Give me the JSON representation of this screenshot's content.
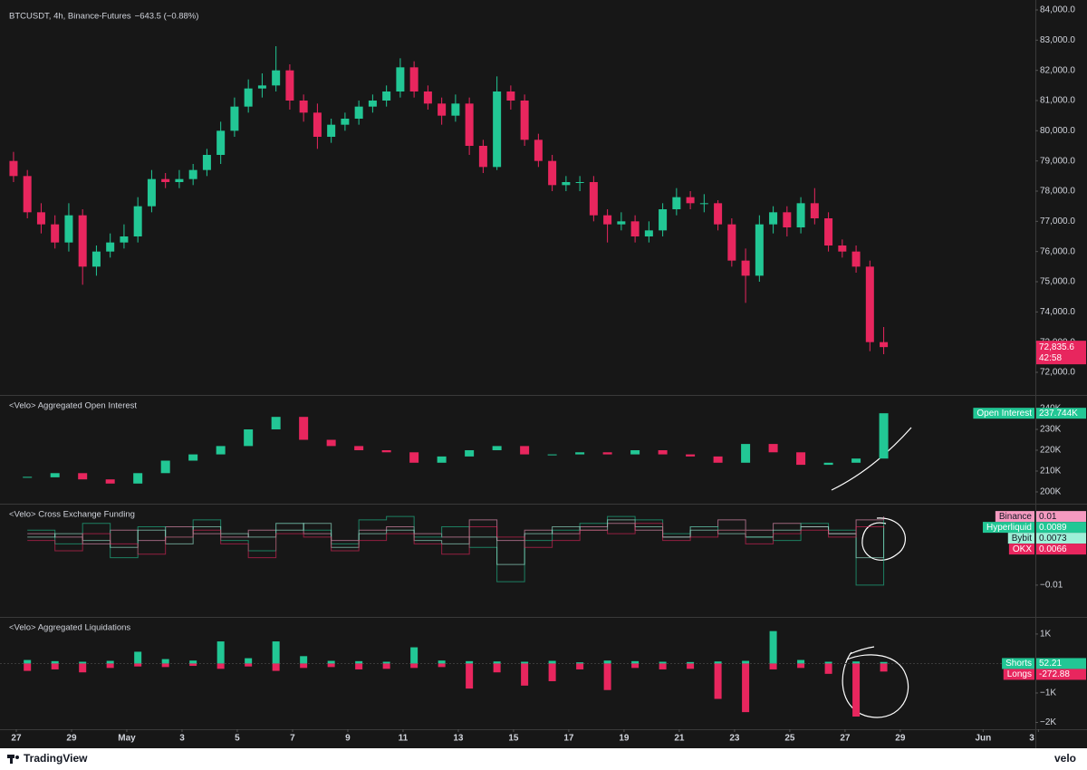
{
  "footer": {
    "brand": "TradingView",
    "partner": "velo"
  },
  "chart_data": [
    {
      "type": "candlestick",
      "title": "BTCUSDT, 4h, Binance-Futures",
      "change": "−643.5 (−0.88%)",
      "up_color": "#22c795",
      "down_color": "#e8265e",
      "xlim": [
        -0.59,
        36.89
      ],
      "ylim": [
        71280,
        84090
      ],
      "yticks": [
        {
          "value": 72000,
          "label": "72,000.0"
        },
        {
          "value": 73000,
          "label": "73,000.0"
        },
        {
          "value": 74000,
          "label": "74,000.0"
        },
        {
          "value": 75000,
          "label": "75,000.0"
        },
        {
          "value": 76000,
          "label": "76,000.0"
        },
        {
          "value": 77000,
          "label": "77,000.0"
        },
        {
          "value": 78000,
          "label": "78,000.0"
        },
        {
          "value": 79000,
          "label": "79,000.0"
        },
        {
          "value": 80000,
          "label": "80,000.0"
        },
        {
          "value": 81000,
          "label": "81,000.0"
        },
        {
          "value": 82000,
          "label": "82,000.0"
        },
        {
          "value": 83000,
          "label": "83,000.0"
        },
        {
          "value": 84000,
          "label": "84,000.0"
        }
      ],
      "x": [
        -0.1,
        0.4,
        0.9,
        1.4,
        1.9,
        2.4,
        2.9,
        3.4,
        3.9,
        4.4,
        4.9,
        5.4,
        5.9,
        6.4,
        6.9,
        7.4,
        7.9,
        8.4,
        8.9,
        9.4,
        9.9,
        10.4,
        10.9,
        11.4,
        11.9,
        12.4,
        12.9,
        13.4,
        13.9,
        14.4,
        14.9,
        15.4,
        15.9,
        16.4,
        16.9,
        17.4,
        17.9,
        18.4,
        18.9,
        19.4,
        19.9,
        20.4,
        20.9,
        21.4,
        21.9,
        22.4,
        22.9,
        23.4,
        23.9,
        24.4,
        24.9,
        25.4,
        25.9,
        26.4,
        26.9,
        27.4,
        27.9,
        28.4,
        28.9,
        29.4,
        29.9,
        30.4,
        30.9,
        31.4
      ],
      "ohlc": [
        [
          79000,
          79300,
          78300,
          78500
        ],
        [
          78500,
          78700,
          77100,
          77300
        ],
        [
          77300,
          77600,
          76600,
          76900
        ],
        [
          76900,
          77200,
          76100,
          76300
        ],
        [
          76300,
          77600,
          76000,
          77200
        ],
        [
          77200,
          77400,
          74900,
          75500
        ],
        [
          75500,
          76200,
          75200,
          76000
        ],
        [
          76000,
          76600,
          75800,
          76300
        ],
        [
          76300,
          76900,
          76100,
          76500
        ],
        [
          76500,
          77800,
          76300,
          77500
        ],
        [
          77500,
          78700,
          77300,
          78400
        ],
        [
          78400,
          78600,
          78100,
          78300
        ],
        [
          78300,
          78700,
          78100,
          78400
        ],
        [
          78400,
          78900,
          78200,
          78700
        ],
        [
          78700,
          79400,
          78500,
          79200
        ],
        [
          79200,
          80300,
          78900,
          80000
        ],
        [
          80000,
          81100,
          79800,
          80800
        ],
        [
          80800,
          81700,
          80600,
          81400
        ],
        [
          81400,
          81900,
          81100,
          81500
        ],
        [
          81500,
          82800,
          81300,
          82000
        ],
        [
          82000,
          82200,
          80700,
          81000
        ],
        [
          81000,
          81200,
          80300,
          80600
        ],
        [
          80600,
          80900,
          79400,
          79800
        ],
        [
          79800,
          80400,
          79600,
          80200
        ],
        [
          80200,
          80600,
          80000,
          80400
        ],
        [
          80400,
          81000,
          80200,
          80800
        ],
        [
          80800,
          81200,
          80600,
          81000
        ],
        [
          81000,
          81500,
          80800,
          81300
        ],
        [
          81300,
          82400,
          81100,
          82100
        ],
        [
          82100,
          82300,
          81100,
          81300
        ],
        [
          81300,
          81500,
          80700,
          80900
        ],
        [
          80900,
          81100,
          80200,
          80500
        ],
        [
          80500,
          81200,
          80300,
          80900
        ],
        [
          80900,
          81100,
          79200,
          79500
        ],
        [
          79500,
          79700,
          78600,
          78800
        ],
        [
          78800,
          81800,
          78700,
          81300
        ],
        [
          81300,
          81500,
          80700,
          81000
        ],
        [
          81000,
          81200,
          79500,
          79700
        ],
        [
          79700,
          79900,
          78800,
          79000
        ],
        [
          79000,
          79200,
          78000,
          78200
        ],
        [
          78200,
          78500,
          78000,
          78300
        ],
        [
          78300,
          78500,
          78000,
          78300
        ],
        [
          78300,
          78500,
          77000,
          77200
        ],
        [
          77200,
          77400,
          76300,
          76900
        ],
        [
          76900,
          77300,
          76700,
          77000
        ],
        [
          77000,
          77200,
          76300,
          76500
        ],
        [
          76500,
          77000,
          76300,
          76700
        ],
        [
          76700,
          77600,
          76500,
          77400
        ],
        [
          77400,
          78100,
          77200,
          77800
        ],
        [
          77800,
          78000,
          77400,
          77600
        ],
        [
          77600,
          77900,
          77300,
          77600
        ],
        [
          77600,
          77700,
          76700,
          76900
        ],
        [
          76900,
          77100,
          75500,
          75700
        ],
        [
          75700,
          76100,
          74300,
          75200
        ],
        [
          75200,
          77200,
          75000,
          76900
        ],
        [
          76900,
          77500,
          76600,
          77300
        ],
        [
          77300,
          77500,
          76500,
          76800
        ],
        [
          76800,
          77800,
          76600,
          77600
        ],
        [
          77600,
          78100,
          76900,
          77100
        ],
        [
          77100,
          77300,
          76000,
          76200
        ],
        [
          76200,
          76400,
          75800,
          76000
        ],
        [
          76000,
          76200,
          75300,
          75500
        ],
        [
          75500,
          75700,
          72700,
          73000
        ],
        [
          73000,
          73500,
          72600,
          72835.6
        ]
      ],
      "last_price": {
        "value": 72835.6,
        "label": "72,835.6"
      },
      "countdown": "42:58"
    },
    {
      "type": "candlestick",
      "title": "<Velo> Aggregated Open Interest",
      "up_color": "#22c795",
      "down_color": "#e8265e",
      "xlim": [
        -0.59,
        36.89
      ],
      "ylim": [
        194780,
        245650
      ],
      "yticks": [
        {
          "value": 200000,
          "label": "200K"
        },
        {
          "value": 210000,
          "label": "210K"
        },
        {
          "value": 220000,
          "label": "220K"
        },
        {
          "value": 230000,
          "label": "230K"
        },
        {
          "value": 240000,
          "label": "240K"
        }
      ],
      "x": [
        0.4,
        1.4,
        2.4,
        3.4,
        4.4,
        5.4,
        6.4,
        7.4,
        8.4,
        9.4,
        10.4,
        11.4,
        12.4,
        13.4,
        14.4,
        15.4,
        16.4,
        17.4,
        18.4,
        19.4,
        20.4,
        21.4,
        22.4,
        23.4,
        24.4,
        25.4,
        26.4,
        27.4,
        28.4,
        29.4,
        30.4,
        31.4
      ],
      "series": [
        {
          "name": "Open Interest",
          "color": "#22c795",
          "values": [
            207000,
            209000,
            206000,
            204000,
            209000,
            215000,
            218000,
            222000,
            230000,
            236000,
            225000,
            222000,
            220000,
            219000,
            214000,
            217000,
            220000,
            222000,
            218000,
            218000,
            219000,
            218000,
            220000,
            218000,
            217000,
            214000,
            223000,
            219000,
            213000,
            214000,
            216000,
            237744
          ],
          "last_value_label": "237.744K"
        }
      ]
    },
    {
      "type": "line",
      "title": "<Velo> Cross Exchange Funding",
      "step": true,
      "xlim": [
        -0.59,
        36.89
      ],
      "ylim": [
        -0.019,
        0.0132
      ],
      "yticks": [
        {
          "value": -0.01,
          "label": "−0.01"
        }
      ],
      "x": [
        0.4,
        1.4,
        2.4,
        3.4,
        4.4,
        5.4,
        6.4,
        7.4,
        8.4,
        9.4,
        10.4,
        11.4,
        12.4,
        13.4,
        14.4,
        15.4,
        16.4,
        17.4,
        18.4,
        19.4,
        20.4,
        21.4,
        22.4,
        23.4,
        24.4,
        25.4,
        26.4,
        27.4,
        28.4,
        29.4,
        30.4,
        31.4
      ],
      "series": [
        {
          "name": "Binance",
          "color": "#f59ac0",
          "values": [
            0.005,
            0.004,
            0.002,
            0.006,
            0.003,
            0.007,
            0.005,
            0.004,
            0.006,
            0.008,
            0.005,
            0.003,
            0.006,
            0.007,
            0.005,
            0.004,
            0.009,
            0.003,
            0.006,
            0.005,
            0.007,
            0.008,
            0.006,
            0.004,
            0.007,
            0.009,
            0.006,
            0.008,
            0.007,
            0.005,
            0.009,
            0.01
          ]
        },
        {
          "name": "Hyperliquid",
          "color": "#22c795",
          "values": [
            0.006,
            0.002,
            0.008,
            -0.002,
            0.007,
            0.004,
            0.009,
            0.003,
            0,
            0.008,
            0.006,
            0.002,
            0.009,
            0.01,
            0.004,
            0.007,
            0.001,
            -0.009,
            0.003,
            0.006,
            0.008,
            0.01,
            0.009,
            0.005,
            0.007,
            0.006,
            0.004,
            0.003,
            0.008,
            0.006,
            -0.01,
            0.0089
          ]
        },
        {
          "name": "Bybit",
          "color": "#9ef0d8",
          "values": [
            0.004,
            0.005,
            0.003,
            0.001,
            0.006,
            0.002,
            0.007,
            0.005,
            0.004,
            0.006,
            0.008,
            0.001,
            0.005,
            0.006,
            0.003,
            0.002,
            0.004,
            -0.004,
            0.005,
            0.007,
            0.006,
            0.009,
            0.007,
            0.004,
            0.006,
            0.005,
            0.004,
            0.006,
            0.007,
            0.005,
            -0.002,
            0.0073
          ]
        },
        {
          "name": "OKX",
          "color": "#e8265e",
          "values": [
            0.003,
            0,
            0.005,
            0.002,
            -0.001,
            0.004,
            0.006,
            0.002,
            -0.002,
            0.005,
            0.004,
            0,
            0.003,
            0.005,
            0.002,
            -0.001,
            0.007,
            0.004,
            0.001,
            0.003,
            0.006,
            0.005,
            0.008,
            0.003,
            0.004,
            0.006,
            0.002,
            0.005,
            0.006,
            0.004,
            0.007,
            0.0066
          ]
        }
      ]
    },
    {
      "type": "bar",
      "title": "<Velo> Aggregated Liquidations",
      "xlim": [
        -0.59,
        36.89
      ],
      "ylim": [
        -2230,
        1520
      ],
      "yticks": [
        {
          "value": 1000,
          "label": "1K"
        },
        {
          "value": -1000,
          "label": "−1K"
        },
        {
          "value": -2000,
          "label": "−2K"
        }
      ],
      "xticks": [
        {
          "value": 0,
          "label": "27"
        },
        {
          "value": 2,
          "label": "29"
        },
        {
          "value": 4,
          "label": "May"
        },
        {
          "value": 6,
          "label": "3"
        },
        {
          "value": 8,
          "label": "5"
        },
        {
          "value": 10,
          "label": "7"
        },
        {
          "value": 12,
          "label": "9"
        },
        {
          "value": 14,
          "label": "11"
        },
        {
          "value": 16,
          "label": "13"
        },
        {
          "value": 18,
          "label": "15"
        },
        {
          "value": 20,
          "label": "17"
        },
        {
          "value": 22,
          "label": "19"
        },
        {
          "value": 24,
          "label": "21"
        },
        {
          "value": 26,
          "label": "23"
        },
        {
          "value": 28,
          "label": "25"
        },
        {
          "value": 30,
          "label": "27"
        },
        {
          "value": 32,
          "label": "29"
        },
        {
          "value": 35,
          "label": "Jun"
        },
        {
          "value": 37,
          "label": "3"
        }
      ],
      "x": [
        0.4,
        1.4,
        2.4,
        3.4,
        4.4,
        5.4,
        6.4,
        7.4,
        8.4,
        9.4,
        10.4,
        11.4,
        12.4,
        13.4,
        14.4,
        15.4,
        16.4,
        17.4,
        18.4,
        19.4,
        20.4,
        21.4,
        22.4,
        23.4,
        24.4,
        25.4,
        26.4,
        27.4,
        28.4,
        29.4,
        30.4,
        31.4
      ],
      "series": [
        {
          "name": "Shorts",
          "color": "#22c795",
          "values": [
            120,
            80,
            60,
            90,
            400,
            150,
            100,
            750,
            180,
            750,
            250,
            90,
            80,
            60,
            550,
            100,
            80,
            70,
            60,
            90,
            40,
            100,
            80,
            60,
            50,
            70,
            90,
            1100,
            120,
            60,
            70,
            52.21
          ]
        },
        {
          "name": "Longs",
          "color": "#e8265e",
          "values": [
            -250,
            -200,
            -300,
            -150,
            -100,
            -120,
            -80,
            -180,
            -100,
            -250,
            -150,
            -120,
            -200,
            -180,
            -150,
            -120,
            -850,
            -300,
            -750,
            -600,
            -200,
            -900,
            -150,
            -200,
            -180,
            -1200,
            -1650,
            -200,
            -150,
            -350,
            -1800,
            -272.88
          ]
        }
      ]
    }
  ]
}
